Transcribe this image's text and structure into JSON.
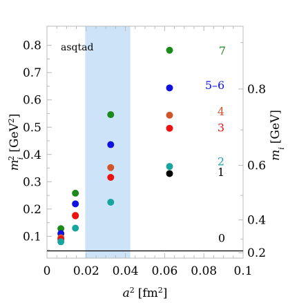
{
  "chart_data": {
    "type": "scatter",
    "annotation": "asqtad",
    "xlabel": "a",
    "xlabel_sup": "2",
    "xlabel_unit": "[fm",
    "xlabel_unit_sup": "2",
    "xlabel_unit_end": "]",
    "ylabel": "m",
    "ylabel_sub": "i",
    "ylabel_sup": "2",
    "ylabel_unit": "[GeV",
    "ylabel_unit_sup": "2",
    "ylabel_unit_end": "]",
    "y2label": "m",
    "y2label_sub": "i",
    "y2label_unit": "[GeV]",
    "xlim": [
      0,
      0.1
    ],
    "ylim": [
      0.02,
      0.87
    ],
    "x_ticks": [
      "0",
      "0.02",
      "0.04",
      "0.06",
      "0.08",
      "0.1"
    ],
    "x_tick_values": [
      0,
      0.02,
      0.04,
      0.06,
      0.08,
      0.1
    ],
    "y_ticks": [
      "0.1",
      "0.2",
      "0.3",
      "0.4",
      "0.5",
      "0.6",
      "0.7",
      "0.8"
    ],
    "y_tick_values": [
      0.1,
      0.2,
      0.3,
      0.4,
      0.5,
      0.6,
      0.7,
      0.8
    ],
    "y2_ticks": [
      "0.2",
      "0.4",
      "0.6",
      "0.8"
    ],
    "y2_tick_values": [
      0.2,
      0.4,
      0.6,
      0.8
    ],
    "shaded_band": {
      "x_from": 0.0195,
      "x_to": 0.0425,
      "color": "#cde3f7"
    },
    "hline": {
      "y": 0.0466,
      "color": "#000000"
    },
    "series": [
      {
        "label": "7",
        "color": "#1a8a1a",
        "points": [
          [
            0.0071,
            0.128
          ],
          [
            0.0145,
            0.258
          ],
          [
            0.0325,
            0.546
          ],
          [
            0.0625,
            0.782
          ]
        ]
      },
      {
        "label": "5–6",
        "color": "#1010e0",
        "points": [
          [
            0.0071,
            0.11
          ],
          [
            0.0145,
            0.219
          ],
          [
            0.0325,
            0.436
          ],
          [
            0.0625,
            0.644
          ]
        ]
      },
      {
        "label": "4",
        "color": "#d2552a",
        "points": [
          [
            0.0071,
            0.095
          ],
          [
            0.0145,
            0.177
          ],
          [
            0.0325,
            0.352
          ],
          [
            0.0625,
            0.544
          ]
        ]
      },
      {
        "label": "3",
        "color": "#ee1111",
        "points": [
          [
            0.0071,
            0.089
          ],
          [
            0.0145,
            0.175
          ],
          [
            0.0325,
            0.316
          ],
          [
            0.0625,
            0.496
          ]
        ]
      },
      {
        "label": "2",
        "color": "#17a5a0",
        "points": [
          [
            0.0071,
            0.08
          ],
          [
            0.0145,
            0.13
          ],
          [
            0.0325,
            0.225
          ],
          [
            0.0625,
            0.356
          ]
        ]
      },
      {
        "label": "1",
        "color": "#000000",
        "points": [
          [
            0.0625,
            0.33
          ]
        ]
      },
      {
        "label": "0",
        "color": "#000000",
        "points": []
      }
    ]
  }
}
